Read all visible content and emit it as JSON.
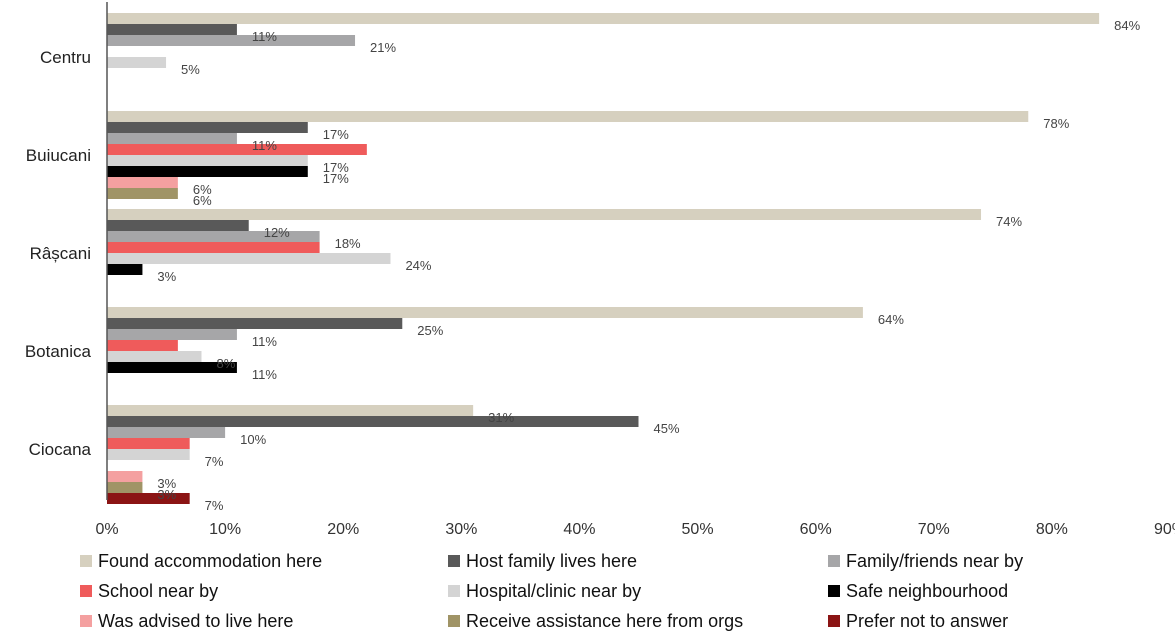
{
  "chart_data": {
    "type": "bar",
    "orientation": "horizontal",
    "title": "",
    "xlabel": "",
    "ylabel": "",
    "xlim": [
      0,
      90
    ],
    "x_ticks": [
      "0%",
      "10%",
      "20%",
      "30%",
      "40%",
      "50%",
      "60%",
      "70%",
      "80%",
      "90%"
    ],
    "grid": false,
    "legend_position": "bottom",
    "categories": [
      "Centru",
      "Buiucani",
      "Râșcani",
      "Botanica",
      "Ciocana"
    ],
    "series": [
      {
        "name": "Found accommodation here",
        "color": "#d6d0bf",
        "values": [
          84,
          78,
          74,
          64,
          31
        ]
      },
      {
        "name": "Host family lives here",
        "color": "#595959",
        "values": [
          11,
          17,
          12,
          25,
          45
        ]
      },
      {
        "name": "Family/friends near by",
        "color": "#a6a6a8",
        "values": [
          21,
          11,
          18,
          11,
          10
        ]
      },
      {
        "name": "School near by",
        "color": "#ef5b5b",
        "values": [
          null,
          22,
          18,
          6,
          7
        ]
      },
      {
        "name": "Hospital/clinic near by",
        "color": "#d4d4d4",
        "values": [
          5,
          17,
          24,
          8,
          7
        ]
      },
      {
        "name": "Safe neighbourhood",
        "color": "#000000",
        "values": [
          null,
          17,
          3,
          11,
          null
        ]
      },
      {
        "name": "Was advised to live here",
        "color": "#f4a0a0",
        "values": [
          null,
          6,
          null,
          null,
          3
        ]
      },
      {
        "name": "Receive assistance here from orgs",
        "color": "#a09466",
        "values": [
          null,
          6,
          null,
          null,
          3
        ]
      },
      {
        "name": "Prefer not to answer",
        "color": "#8b1414",
        "values": [
          null,
          null,
          null,
          null,
          7
        ]
      }
    ],
    "data_labels": [
      [
        [
          "0",
          "84%"
        ],
        [
          "1",
          "11%"
        ],
        [
          "2",
          "21%"
        ],
        [
          "4",
          "5%"
        ]
      ],
      [
        [
          "0",
          "78%"
        ],
        [
          "1",
          "17%"
        ],
        [
          "2",
          "11%"
        ],
        [
          "4",
          "17%"
        ],
        [
          "5",
          "17%"
        ],
        [
          "6",
          "6%"
        ],
        [
          "7",
          "6%"
        ]
      ],
      [
        [
          "0",
          "74%"
        ],
        [
          "1",
          "12%"
        ],
        [
          "2",
          "18%"
        ],
        [
          "4",
          "24%"
        ],
        [
          "5",
          "3%"
        ]
      ],
      [
        [
          "0",
          "64%"
        ],
        [
          "1",
          "25%"
        ],
        [
          "2",
          "11%"
        ],
        [
          "4",
          "8%"
        ],
        [
          "5",
          "11%"
        ]
      ],
      [
        [
          "0",
          "31%"
        ],
        [
          "1",
          "45%"
        ],
        [
          "2",
          "10%"
        ],
        [
          "4",
          "7%"
        ],
        [
          "6",
          "3%"
        ],
        [
          "7",
          "3%"
        ],
        [
          "8",
          "7%"
        ]
      ]
    ]
  }
}
